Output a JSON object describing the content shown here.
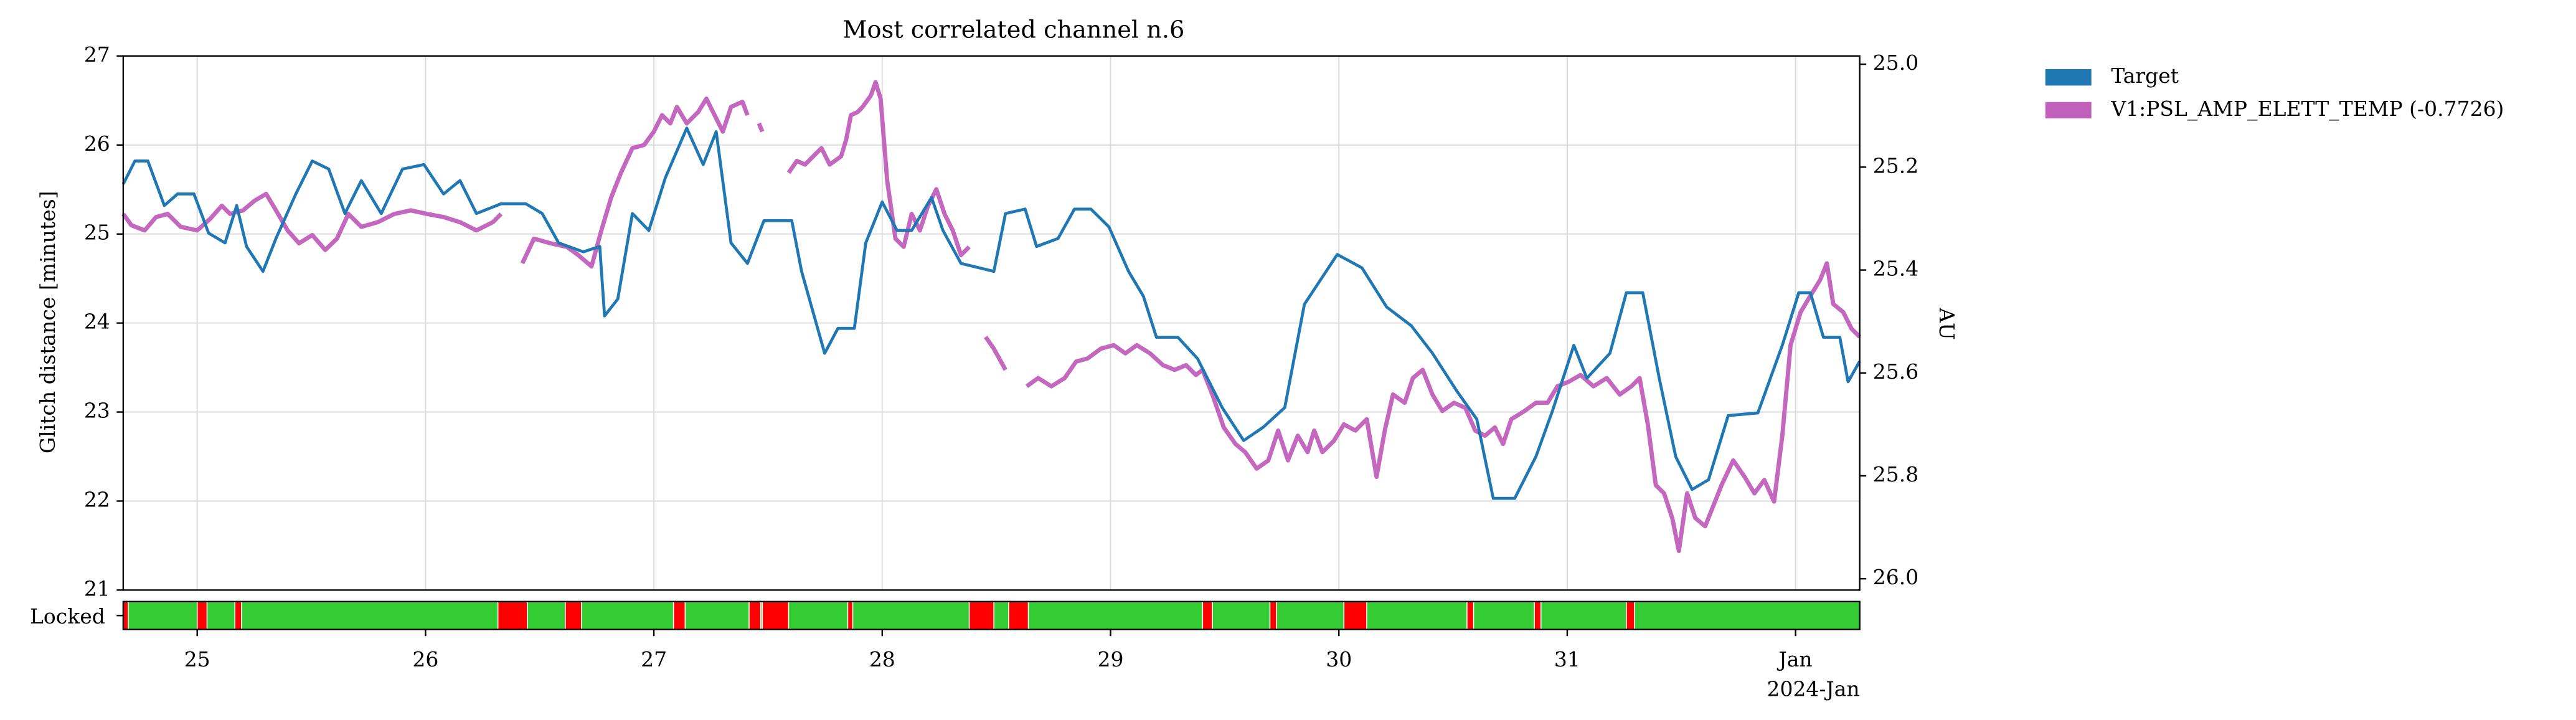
{
  "chart_data": {
    "type": "line",
    "title": "Most correlated channel n.6",
    "ylabel": "Glitch distance [minutes]",
    "y2label": "AU",
    "x_offset_label": "2024-Jan",
    "xlim": [
      24.676,
      32.281
    ],
    "xticks": [
      25,
      26,
      27,
      28,
      29,
      30,
      31,
      {
        "value": 32,
        "label": "Jan"
      }
    ],
    "ylim": [
      21,
      27
    ],
    "yticks": [
      21,
      22,
      23,
      24,
      25,
      26,
      27
    ],
    "y2lim": [
      26.022,
      24.984
    ],
    "y2ticks": [
      {
        "value": 25.0,
        "label": "25.0"
      },
      25.2,
      25.4,
      25.6,
      25.8,
      {
        "value": 26.0,
        "label": "26.0"
      }
    ],
    "grid": true,
    "legend": "outside",
    "series": [
      {
        "name": "Target",
        "color": "#1f77b4",
        "x": [
          24.676,
          24.727,
          24.784,
          24.856,
          24.914,
          24.986,
          25.05,
          25.122,
          25.173,
          25.216,
          25.288,
          25.345,
          25.432,
          25.504,
          25.576,
          25.647,
          25.719,
          25.806,
          25.899,
          25.993,
          26.079,
          26.151,
          26.223,
          26.331,
          26.439,
          26.511,
          26.583,
          26.691,
          26.763,
          26.784,
          26.842,
          26.906,
          26.978,
          27.05,
          27.144,
          27.216,
          27.273,
          27.338,
          27.41,
          27.482,
          27.604,
          27.647,
          27.748,
          27.806,
          27.878,
          27.928,
          28.0,
          28.065,
          28.129,
          28.216,
          28.266,
          28.345,
          28.489,
          28.54,
          28.626,
          28.676,
          28.77,
          28.842,
          28.914,
          28.993,
          29.079,
          29.144,
          29.201,
          29.295,
          29.381,
          29.489,
          29.583,
          29.669,
          29.763,
          29.849,
          29.921,
          29.993,
          30.101,
          30.209,
          30.317,
          30.41,
          30.518,
          30.604,
          30.676,
          30.77,
          30.863,
          30.935,
          31.029,
          31.086,
          31.187,
          31.259,
          31.331,
          31.403,
          31.475,
          31.547,
          31.619,
          31.705,
          31.835,
          31.942,
          32.014,
          32.065,
          32.122,
          32.194,
          32.23,
          32.281
        ],
        "values": [
          25.56,
          25.82,
          25.82,
          25.32,
          25.45,
          25.45,
          25.01,
          24.9,
          25.32,
          24.86,
          24.58,
          24.95,
          25.45,
          25.82,
          25.73,
          25.23,
          25.6,
          25.23,
          25.73,
          25.78,
          25.45,
          25.6,
          25.23,
          25.34,
          25.34,
          25.23,
          24.9,
          24.8,
          24.86,
          24.08,
          24.27,
          25.23,
          25.04,
          25.63,
          26.19,
          25.78,
          26.15,
          24.9,
          24.67,
          25.15,
          25.15,
          24.58,
          23.66,
          23.94,
          23.94,
          24.9,
          25.36,
          25.04,
          25.04,
          25.41,
          25.04,
          24.67,
          24.58,
          25.23,
          25.28,
          24.86,
          24.95,
          25.28,
          25.28,
          25.08,
          24.58,
          24.3,
          23.84,
          23.84,
          23.6,
          23.05,
          22.68,
          22.83,
          23.05,
          24.21,
          24.49,
          24.77,
          24.62,
          24.18,
          23.97,
          23.66,
          23.23,
          22.92,
          22.03,
          22.03,
          22.5,
          23.01,
          23.75,
          23.38,
          23.66,
          24.34,
          24.34,
          23.38,
          22.5,
          22.13,
          22.24,
          22.96,
          22.99,
          23.75,
          24.34,
          24.34,
          23.84,
          23.84,
          23.34,
          23.57
        ]
      },
      {
        "name": "V1:PSL_AMP_ELETT_TEMP (-0.7726)",
        "color": "#c060bb",
        "axis": "y2",
        "x": [
          24.676,
          24.712,
          24.77,
          24.82,
          24.871,
          24.928,
          25.0,
          25.058,
          25.108,
          25.144,
          25.201,
          25.252,
          25.302,
          25.345,
          25.396,
          25.446,
          25.504,
          25.561,
          25.612,
          25.662,
          25.719,
          25.791,
          25.863,
          25.935,
          26.007,
          26.079,
          26.151,
          26.223,
          26.295,
          26.331,
          null,
          26.424,
          26.475,
          26.547,
          26.619,
          26.669,
          26.727,
          26.77,
          26.813,
          26.856,
          26.906,
          26.957,
          27.0,
          27.036,
          27.072,
          27.101,
          27.144,
          27.194,
          27.23,
          27.266,
          27.302,
          27.338,
          27.388,
          27.41,
          null,
          27.46,
          27.475,
          null,
          27.59,
          27.626,
          27.662,
          27.698,
          27.734,
          27.77,
          27.82,
          27.842,
          27.863,
          27.892,
          27.914,
          27.95,
          27.971,
          27.993,
          28.022,
          28.058,
          28.094,
          28.129,
          28.165,
          28.201,
          28.237,
          28.273,
          28.309,
          28.345,
          28.381,
          null,
          28.453,
          28.489,
          28.54,
          null,
          28.633,
          28.683,
          28.741,
          28.799,
          28.849,
          28.899,
          28.957,
          29.014,
          29.065,
          29.115,
          29.173,
          29.23,
          29.281,
          29.331,
          29.374,
          29.403,
          29.446,
          29.496,
          29.547,
          29.59,
          29.64,
          29.691,
          29.734,
          29.777,
          29.82,
          29.863,
          29.892,
          29.928,
          29.978,
          30.022,
          30.072,
          30.122,
          30.165,
          30.201,
          30.237,
          30.288,
          30.324,
          30.367,
          30.41,
          30.453,
          30.504,
          30.554,
          30.597,
          30.64,
          30.683,
          30.719,
          30.755,
          30.813,
          30.863,
          30.914,
          30.957,
          31.007,
          31.058,
          31.115,
          31.173,
          31.23,
          31.281,
          31.317,
          31.353,
          31.388,
          31.424,
          31.46,
          31.489,
          31.525,
          31.561,
          31.604,
          31.633,
          31.676,
          31.727,
          31.777,
          31.82,
          31.863,
          31.906,
          31.942,
          31.978,
          32.022,
          32.065,
          32.108,
          32.137,
          32.165,
          32.209,
          32.245,
          32.281
        ],
        "values": [
          25.291,
          25.313,
          25.323,
          25.297,
          25.291,
          25.316,
          25.323,
          25.3,
          25.275,
          25.291,
          25.284,
          25.265,
          25.252,
          25.284,
          25.323,
          25.348,
          25.332,
          25.361,
          25.339,
          25.291,
          25.316,
          25.307,
          25.291,
          25.284,
          25.291,
          25.297,
          25.307,
          25.323,
          25.307,
          25.291,
          null,
          25.387,
          25.339,
          25.348,
          25.355,
          25.371,
          25.393,
          25.323,
          25.259,
          25.211,
          25.163,
          25.157,
          25.131,
          25.099,
          25.115,
          25.083,
          25.115,
          25.093,
          25.067,
          25.099,
          25.131,
          25.083,
          25.073,
          25.099,
          null,
          25.115,
          25.131,
          null,
          25.211,
          25.188,
          25.195,
          25.179,
          25.163,
          25.195,
          25.179,
          25.147,
          25.099,
          25.093,
          25.083,
          25.061,
          25.035,
          25.067,
          25.227,
          25.339,
          25.355,
          25.291,
          25.323,
          25.275,
          25.243,
          25.291,
          25.323,
          25.371,
          25.355,
          null,
          25.53,
          25.553,
          25.594,
          null,
          25.626,
          25.61,
          25.626,
          25.61,
          25.578,
          25.572,
          25.553,
          25.546,
          25.562,
          25.546,
          25.562,
          25.585,
          25.594,
          25.585,
          25.604,
          25.594,
          25.642,
          25.706,
          25.738,
          25.754,
          25.786,
          25.77,
          25.712,
          25.77,
          25.722,
          25.754,
          25.712,
          25.754,
          25.732,
          25.7,
          25.712,
          25.69,
          25.802,
          25.712,
          25.642,
          25.658,
          25.61,
          25.594,
          25.642,
          25.674,
          25.658,
          25.668,
          25.712,
          25.722,
          25.706,
          25.738,
          25.69,
          25.674,
          25.658,
          25.658,
          25.626,
          25.617,
          25.604,
          25.626,
          25.61,
          25.642,
          25.626,
          25.61,
          25.7,
          25.818,
          25.834,
          25.882,
          25.946,
          25.834,
          25.882,
          25.898,
          25.866,
          25.818,
          25.77,
          25.802,
          25.834,
          25.808,
          25.85,
          25.722,
          25.546,
          25.482,
          25.45,
          25.419,
          25.387,
          25.466,
          25.482,
          25.514,
          25.53
        ]
      }
    ],
    "locked": {
      "label": "Locked",
      "on_color": "#33cc33",
      "off_color": "#ff0000",
      "off_intervals": [
        [
          24.676,
          24.698
        ],
        [
          25.0,
          25.043
        ],
        [
          25.165,
          25.194
        ],
        [
          26.317,
          26.446
        ],
        [
          26.612,
          26.683
        ],
        [
          27.086,
          27.137
        ],
        [
          27.417,
          27.468
        ],
        [
          27.475,
          27.59
        ],
        [
          27.849,
          27.871
        ],
        [
          28.381,
          28.489
        ],
        [
          28.554,
          28.64
        ],
        [
          29.403,
          29.446
        ],
        [
          29.698,
          29.727
        ],
        [
          30.022,
          30.122
        ],
        [
          30.561,
          30.59
        ],
        [
          30.856,
          30.885
        ],
        [
          31.259,
          31.295
        ]
      ]
    }
  }
}
